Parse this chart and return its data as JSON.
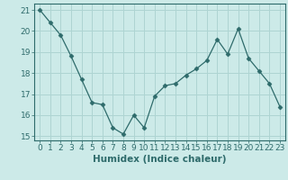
{
  "x": [
    0,
    1,
    2,
    3,
    4,
    5,
    6,
    7,
    8,
    9,
    10,
    11,
    12,
    13,
    14,
    15,
    16,
    17,
    18,
    19,
    20,
    21,
    22,
    23
  ],
  "y": [
    21.0,
    20.4,
    19.8,
    18.8,
    17.7,
    16.6,
    16.5,
    15.4,
    15.1,
    16.0,
    15.4,
    16.9,
    17.4,
    17.5,
    17.9,
    18.2,
    18.6,
    19.6,
    18.9,
    20.1,
    18.7,
    18.1,
    17.5,
    16.4
  ],
  "line_color": "#2e6b6b",
  "marker": "D",
  "marker_size": 2.5,
  "bg_color": "#cceae8",
  "grid_color": "#aed4d2",
  "xlabel": "Humidex (Indice chaleur)",
  "xlim": [
    -0.5,
    23.5
  ],
  "ylim": [
    14.8,
    21.3
  ],
  "yticks": [
    15,
    16,
    17,
    18,
    19,
    20,
    21
  ],
  "xticks": [
    0,
    1,
    2,
    3,
    4,
    5,
    6,
    7,
    8,
    9,
    10,
    11,
    12,
    13,
    14,
    15,
    16,
    17,
    18,
    19,
    20,
    21,
    22,
    23
  ],
  "tick_color": "#2e6b6b",
  "label_fontsize": 6.5,
  "axis_fontsize": 7.5
}
